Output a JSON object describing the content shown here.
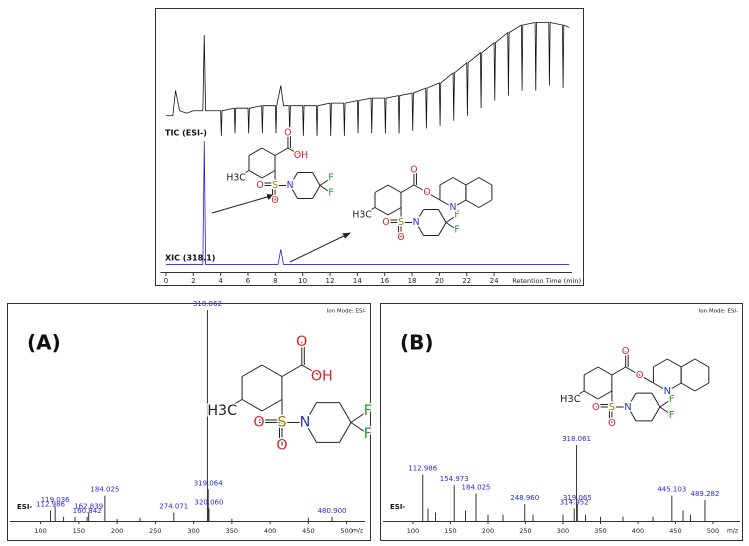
{
  "chart_data": [
    {
      "type": "line",
      "xlabel": "Retention Time (min)",
      "xlim": [
        -0.4,
        29.7
      ],
      "xticks": [
        0,
        2,
        4,
        6,
        8,
        10,
        12,
        14,
        16,
        18,
        20,
        22,
        24
      ],
      "ylim": [
        0,
        100
      ],
      "series": [
        {
          "name": "TIC (ESI-)",
          "color": "#111111",
          "x": [
            0,
            0.5,
            0.7,
            1,
            1.5,
            2,
            2.7,
            2.8,
            2.9,
            3.5,
            4,
            4.05,
            4.1,
            5,
            5.05,
            5.1,
            6,
            6.05,
            6.1,
            7,
            7.05,
            7.1,
            8,
            8.05,
            8.1,
            8.4,
            8.6,
            9,
            9.05,
            9.1,
            10,
            10.05,
            10.1,
            11,
            11.05,
            11.1,
            12,
            12.05,
            12.1,
            13,
            13.05,
            13.1,
            14,
            14.05,
            14.1,
            15,
            15.05,
            15.1,
            16,
            16.05,
            16.1,
            17,
            17.05,
            17.1,
            18,
            18.05,
            18.1,
            19,
            19.05,
            19.1,
            20,
            20.05,
            20.1,
            21,
            21.05,
            21.1,
            22,
            22.05,
            22.1,
            23,
            23.05,
            23.1,
            24,
            24.05,
            24.1,
            25,
            25.05,
            25.1,
            26,
            26.05,
            26.1,
            27,
            27.05,
            27.1,
            28,
            28.05,
            28.1,
            29,
            29.05,
            29.1,
            29.5
          ],
          "values": [
            62,
            62,
            72,
            64,
            63,
            64,
            64,
            94,
            64,
            64,
            64,
            54,
            64,
            65,
            55,
            65,
            65,
            55,
            65,
            66,
            55,
            66,
            66,
            55,
            66,
            74,
            66,
            66,
            55,
            66,
            66,
            54,
            66,
            66,
            54,
            66,
            67,
            54,
            67,
            67,
            54,
            67,
            68,
            55,
            68,
            69,
            55,
            69,
            69,
            55,
            69,
            70,
            55,
            70,
            71,
            56,
            71,
            73,
            57,
            73,
            75,
            58,
            75,
            79,
            60,
            79,
            83,
            62,
            83,
            87,
            65,
            87,
            91,
            68,
            91,
            95,
            70,
            95,
            98,
            72,
            98,
            99,
            72,
            99,
            99,
            74,
            99,
            98,
            73,
            98,
            97
          ]
        },
        {
          "name": "XIC (318.1)",
          "color": "#2323e6",
          "x": [
            0,
            2.7,
            2.8,
            2.9,
            8.2,
            8.4,
            8.6,
            29.5
          ],
          "values": [
            3,
            3,
            52,
            3,
            3,
            9,
            3,
            3
          ]
        }
      ],
      "structures": [
        [
          "O",
          "OH",
          "H3C",
          "S",
          "O",
          "O",
          "N",
          "F",
          "F"
        ],
        [
          "O",
          "O",
          "H3C",
          "S",
          "O",
          "O",
          "N",
          "F",
          "F",
          "N"
        ]
      ]
    },
    {
      "type": "bar",
      "title": "(A)",
      "mode": "Ion Mode: ESI-",
      "trace_label": "ESI-",
      "xlabel": "m/z",
      "xlim": [
        60,
        524
      ],
      "xticks": [
        100,
        150,
        200,
        250,
        300,
        350,
        400,
        450,
        500
      ],
      "ylim": [
        0,
        100
      ],
      "color": "#333333",
      "label_color": "#2a2ad8",
      "x": [
        112.986,
        119.036,
        130,
        145,
        160.842,
        162.839,
        184.025,
        200,
        230,
        274.071,
        318.062,
        319.064,
        320.06,
        350,
        450,
        480.9
      ],
      "x_labels": [
        "112.986",
        "119.036",
        null,
        null,
        "160.842",
        "162.839",
        "184.025",
        null,
        null,
        "274.071",
        "318.062",
        "319.064",
        "320.060",
        null,
        null,
        "480.900"
      ],
      "values": [
        5,
        7,
        2,
        2,
        2,
        4,
        12,
        1,
        1.5,
        4,
        100,
        15,
        6,
        1,
        1.5,
        2
      ],
      "structure": [
        "O",
        "OH",
        "H3C",
        "S",
        "O",
        "O",
        "N",
        "F",
        "F"
      ]
    },
    {
      "type": "bar",
      "title": "(B)",
      "mode": "Ion Mode: ESI-",
      "trace_label": "ESI-",
      "xlabel": "m/z",
      "xlim": [
        60,
        536
      ],
      "xticks": [
        100,
        150,
        200,
        250,
        300,
        350,
        400,
        450,
        500
      ],
      "ylim": [
        0,
        100
      ],
      "color": "#333333",
      "label_color": "#2a2ad8",
      "x": [
        112.986,
        120,
        130,
        154.973,
        170,
        184.025,
        200,
        220,
        248.96,
        260,
        300,
        314.952,
        318.061,
        319.065,
        330,
        350,
        380,
        420,
        445.103,
        460,
        470,
        489.282
      ],
      "x_labels": [
        "112.986",
        null,
        null,
        "154.973",
        null,
        "184.025",
        null,
        null,
        "248.960",
        null,
        null,
        "314.952",
        "318.061",
        "319.065",
        null,
        null,
        null,
        null,
        "445.103",
        null,
        null,
        "489.282"
      ],
      "values": [
        22,
        6,
        4,
        17,
        5,
        13,
        3,
        3,
        8,
        3,
        3,
        6,
        36,
        8,
        3,
        2,
        2,
        2,
        12,
        5,
        3,
        10
      ],
      "structure": [
        "O",
        "O",
        "H3C",
        "S",
        "O",
        "O",
        "N",
        "F",
        "F",
        "N"
      ]
    }
  ]
}
